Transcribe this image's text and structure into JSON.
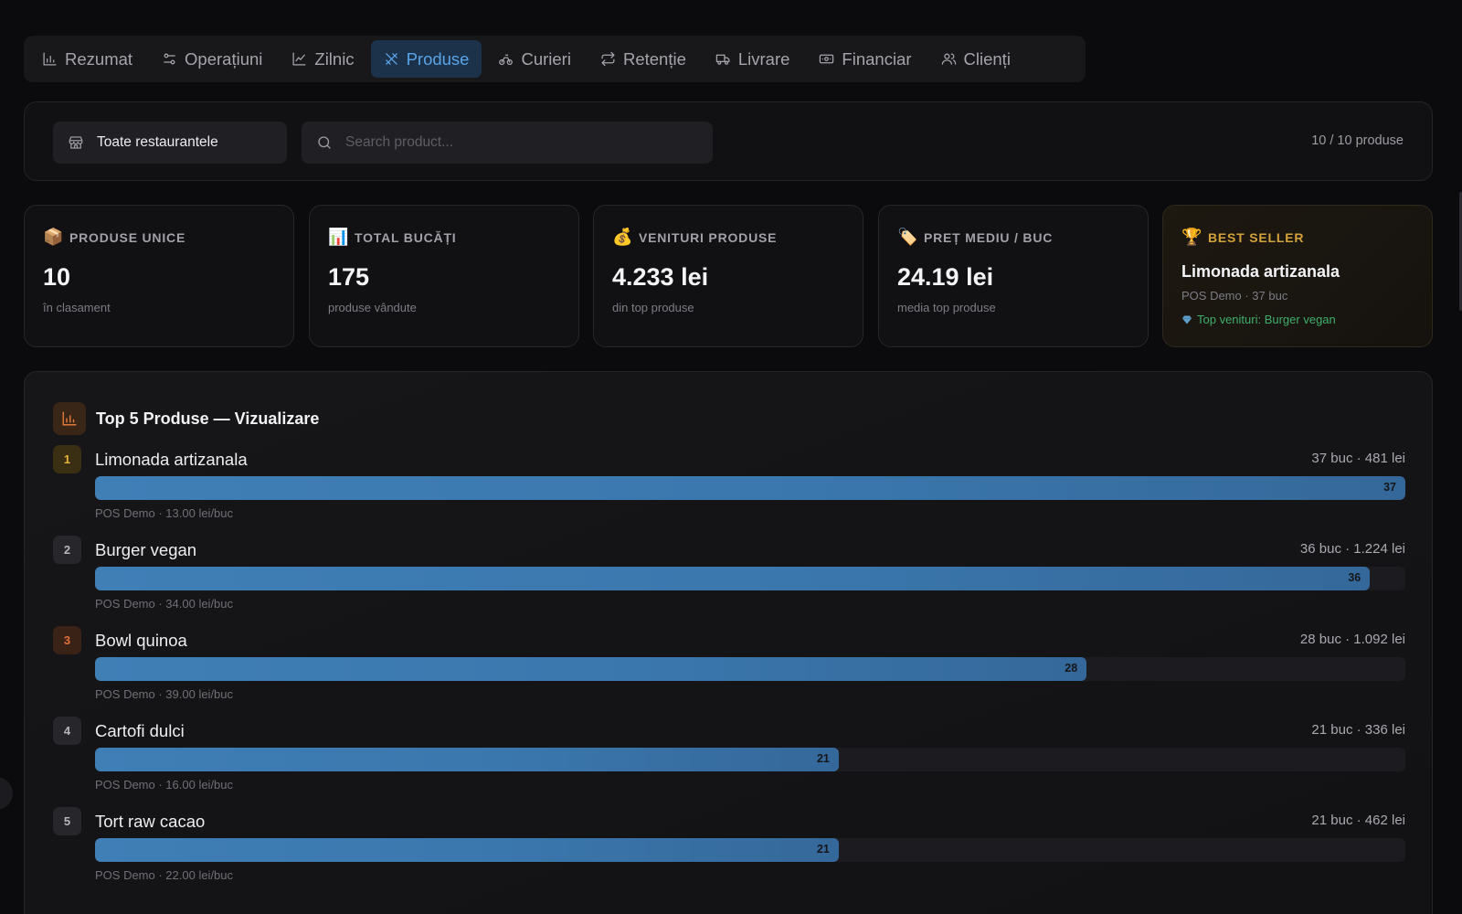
{
  "tabs": [
    {
      "label": "Rezumat",
      "icon": "bar-chart-icon"
    },
    {
      "label": "Operațiuni",
      "icon": "sliders-icon"
    },
    {
      "label": "Zilnic",
      "icon": "line-chart-icon"
    },
    {
      "label": "Produse",
      "icon": "utensils-icon",
      "active": true
    },
    {
      "label": "Curieri",
      "icon": "bike-icon"
    },
    {
      "label": "Retenție",
      "icon": "repeat-icon"
    },
    {
      "label": "Livrare",
      "icon": "truck-icon"
    },
    {
      "label": "Financiar",
      "icon": "banknote-icon"
    },
    {
      "label": "Clienți",
      "icon": "users-icon"
    }
  ],
  "filters": {
    "restaurant_label": "Toate restaurantele",
    "search_placeholder": "Search product...",
    "search_value": "",
    "count_text": "10 / 10 produse"
  },
  "stats": {
    "unique": {
      "emoji": "📦",
      "label": "PRODUSE UNICE",
      "value": "10",
      "sub": "în clasament"
    },
    "pieces": {
      "emoji": "📊",
      "label": "TOTAL BUCĂȚI",
      "value": "175",
      "sub": "produse vândute"
    },
    "revenue": {
      "emoji": "💰",
      "label": "VENITURI PRODUSE",
      "value": "4.233 lei",
      "sub": "din top produse"
    },
    "avg_price": {
      "emoji": "🏷️",
      "label": "PREȚ MEDIU / BUC",
      "value": "24.19 lei",
      "sub": "media top produse"
    },
    "best_seller": {
      "emoji": "🏆",
      "label": "BEST SELLER",
      "name": "Limonada artizanala",
      "sub": "POS Demo · 37 buc",
      "top_revenue": "Top venituri: Burger vegan"
    }
  },
  "top_products": {
    "title": "Top 5 Produse — Vizualizare",
    "max_qty": 37,
    "items": [
      {
        "rank": "1",
        "name": "Limonada artizanala",
        "stats": "37 buc · 481 lei",
        "qty": 37,
        "qty_label": "37",
        "sub": "POS Demo · 13.00 lei/buc",
        "rank_style": "gold"
      },
      {
        "rank": "2",
        "name": "Burger vegan",
        "stats": "36 buc · 1.224 lei",
        "qty": 36,
        "qty_label": "36",
        "sub": "POS Demo · 34.00 lei/buc",
        "rank_style": "gray"
      },
      {
        "rank": "3",
        "name": "Bowl quinoa",
        "stats": "28 buc · 1.092 lei",
        "qty": 28,
        "qty_label": "28",
        "sub": "POS Demo · 39.00 lei/buc",
        "rank_style": "bronze"
      },
      {
        "rank": "4",
        "name": "Cartofi dulci",
        "stats": "21 buc · 336 lei",
        "qty": 21,
        "qty_label": "21",
        "sub": "POS Demo · 16.00 lei/buc",
        "rank_style": "gray"
      },
      {
        "rank": "5",
        "name": "Tort raw cacao",
        "stats": "21 buc · 462 lei",
        "qty": 21,
        "qty_label": "21",
        "sub": "POS Demo · 22.00 lei/buc",
        "rank_style": "gray"
      }
    ]
  },
  "colors": {
    "background": "#0b0b0d",
    "accent": "#5aa4e8",
    "bar": "#3a77ad",
    "best_seller": "#d4a23a",
    "positive": "#3fae6a"
  }
}
